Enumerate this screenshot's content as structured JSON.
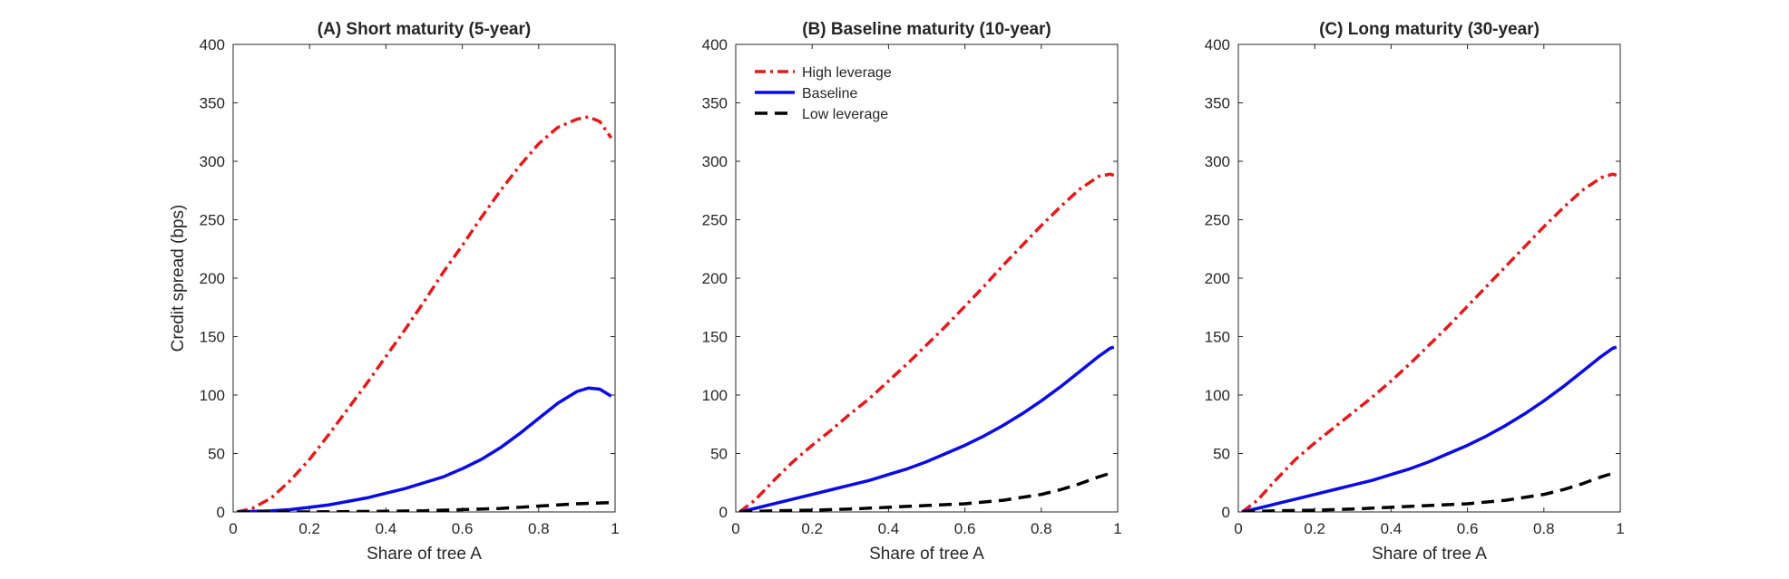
{
  "chart_data": [
    {
      "type": "line",
      "title": "(A) Short maturity (5-year)",
      "xlabel": "Share of tree A",
      "ylabel": "Credit spread (bps)",
      "xlim": [
        0,
        1
      ],
      "ylim": [
        0,
        400
      ],
      "xticks": [
        0,
        0.2,
        0.4,
        0.6,
        0.8,
        1
      ],
      "xtick_labels": [
        "0",
        "0.2",
        "0.4",
        "0.6",
        "0.8",
        "1"
      ],
      "yticks": [
        0,
        50,
        100,
        150,
        200,
        250,
        300,
        350,
        400
      ],
      "ytick_labels": [
        "0",
        "50",
        "100",
        "150",
        "200",
        "250",
        "300",
        "350",
        "400"
      ],
      "grid": false,
      "series": [
        {
          "key": "high",
          "color": "#e41a1c",
          "style": "dashdot",
          "x": [
            0.01,
            0.05,
            0.1,
            0.15,
            0.2,
            0.25,
            0.3,
            0.35,
            0.4,
            0.45,
            0.5,
            0.55,
            0.6,
            0.65,
            0.7,
            0.75,
            0.8,
            0.85,
            0.9,
            0.93,
            0.96,
            0.99
          ],
          "y": [
            0,
            3,
            12,
            27,
            45,
            66,
            88,
            110,
            133,
            156,
            180,
            205,
            228,
            252,
            275,
            296,
            315,
            329,
            336,
            338,
            334,
            320
          ]
        },
        {
          "key": "base",
          "color": "#0a0ae6",
          "style": "solid",
          "x": [
            0.01,
            0.05,
            0.1,
            0.15,
            0.2,
            0.25,
            0.3,
            0.35,
            0.4,
            0.45,
            0.5,
            0.55,
            0.6,
            0.65,
            0.7,
            0.75,
            0.8,
            0.85,
            0.9,
            0.93,
            0.96,
            0.99
          ],
          "y": [
            0,
            0.5,
            1,
            2,
            4,
            6,
            9,
            12,
            16,
            20,
            25,
            30,
            37,
            45,
            55,
            67,
            80,
            93,
            103,
            106,
            105,
            99
          ]
        },
        {
          "key": "low",
          "color": "#000000",
          "style": "dashed",
          "x": [
            0.01,
            0.1,
            0.2,
            0.3,
            0.4,
            0.5,
            0.6,
            0.7,
            0.8,
            0.9,
            0.99
          ],
          "y": [
            0,
            0,
            0,
            0.3,
            0.6,
            1,
            2,
            3,
            5,
            7,
            8
          ]
        }
      ]
    },
    {
      "type": "line",
      "title": "(B) Baseline maturity (10-year)",
      "xlabel": "Share of tree A",
      "ylabel": "",
      "xlim": [
        0,
        1
      ],
      "ylim": [
        0,
        400
      ],
      "xticks": [
        0,
        0.2,
        0.4,
        0.6,
        0.8,
        1
      ],
      "xtick_labels": [
        "0",
        "0.2",
        "0.4",
        "0.6",
        "0.8",
        "1"
      ],
      "yticks": [
        0,
        50,
        100,
        150,
        200,
        250,
        300,
        350,
        400
      ],
      "ytick_labels": [
        "0",
        "50",
        "100",
        "150",
        "200",
        "250",
        "300",
        "350",
        "400"
      ],
      "grid": false,
      "legend": {
        "placement": "top-left",
        "entries": [
          {
            "key": "high",
            "label": "High leverage"
          },
          {
            "key": "base",
            "label": "Baseline"
          },
          {
            "key": "low",
            "label": "Low leverage"
          }
        ]
      },
      "series": [
        {
          "key": "high",
          "color": "#e41a1c",
          "style": "dashdot",
          "x": [
            0.01,
            0.05,
            0.1,
            0.15,
            0.2,
            0.25,
            0.3,
            0.35,
            0.4,
            0.45,
            0.5,
            0.55,
            0.6,
            0.65,
            0.7,
            0.75,
            0.8,
            0.85,
            0.9,
            0.95,
            0.98,
            0.99
          ],
          "y": [
            0,
            10,
            27,
            43,
            57,
            70,
            84,
            97,
            112,
            127,
            143,
            159,
            176,
            193,
            211,
            228,
            245,
            261,
            276,
            287,
            289,
            288
          ]
        },
        {
          "key": "base",
          "color": "#0a0ae6",
          "style": "solid",
          "x": [
            0.01,
            0.05,
            0.1,
            0.15,
            0.2,
            0.25,
            0.3,
            0.35,
            0.4,
            0.45,
            0.5,
            0.55,
            0.6,
            0.65,
            0.7,
            0.75,
            0.8,
            0.85,
            0.9,
            0.95,
            0.98,
            0.99
          ],
          "y": [
            0,
            3,
            7,
            11,
            15,
            19,
            23,
            27,
            32,
            37,
            43,
            50,
            57,
            65,
            74,
            84,
            95,
            107,
            120,
            133,
            140,
            141
          ]
        },
        {
          "key": "low",
          "color": "#000000",
          "style": "dashed",
          "x": [
            0.01,
            0.1,
            0.2,
            0.3,
            0.4,
            0.5,
            0.6,
            0.7,
            0.8,
            0.85,
            0.9,
            0.95,
            0.99
          ],
          "y": [
            0,
            1,
            1.5,
            2.5,
            4,
            5.5,
            7,
            10,
            15,
            19,
            24,
            30,
            34
          ]
        }
      ]
    },
    {
      "type": "line",
      "title": "(C) Long maturity (30-year)",
      "xlabel": "Share of tree A",
      "ylabel": "",
      "xlim": [
        0,
        1
      ],
      "ylim": [
        0,
        400
      ],
      "xticks": [
        0,
        0.2,
        0.4,
        0.6,
        0.8,
        1
      ],
      "xtick_labels": [
        "0",
        "0.2",
        "0.4",
        "0.6",
        "0.8",
        "1"
      ],
      "yticks": [
        0,
        50,
        100,
        150,
        200,
        250,
        300,
        350,
        400
      ],
      "ytick_labels": [
        "0",
        "50",
        "100",
        "150",
        "200",
        "250",
        "300",
        "350",
        "400"
      ],
      "grid": false,
      "series": [
        {
          "key": "high",
          "color": "#e41a1c",
          "style": "dashdot",
          "x": [
            0.01,
            0.05,
            0.1,
            0.15,
            0.2,
            0.25,
            0.3,
            0.35,
            0.4,
            0.45,
            0.5,
            0.55,
            0.6,
            0.65,
            0.7,
            0.75,
            0.8,
            0.85,
            0.9,
            0.95,
            0.98,
            0.99
          ],
          "y": [
            0,
            10,
            28,
            45,
            59,
            72,
            85,
            98,
            112,
            127,
            143,
            159,
            176,
            193,
            210,
            227,
            244,
            260,
            275,
            286,
            289,
            288
          ]
        },
        {
          "key": "base",
          "color": "#0a0ae6",
          "style": "solid",
          "x": [
            0.01,
            0.05,
            0.1,
            0.15,
            0.2,
            0.25,
            0.3,
            0.35,
            0.4,
            0.45,
            0.5,
            0.55,
            0.6,
            0.65,
            0.7,
            0.75,
            0.8,
            0.85,
            0.9,
            0.95,
            0.98,
            0.99
          ],
          "y": [
            0,
            3,
            7,
            11,
            15,
            19,
            23,
            27,
            32,
            37,
            43,
            50,
            57,
            65,
            74,
            84,
            95,
            107,
            120,
            133,
            140,
            141
          ]
        },
        {
          "key": "low",
          "color": "#000000",
          "style": "dashed",
          "x": [
            0.01,
            0.1,
            0.2,
            0.3,
            0.4,
            0.5,
            0.6,
            0.7,
            0.8,
            0.85,
            0.9,
            0.95,
            0.99
          ],
          "y": [
            0,
            1,
            1.5,
            2.5,
            4,
            5.5,
            7,
            10,
            15,
            19,
            24,
            30,
            34
          ]
        }
      ]
    }
  ]
}
